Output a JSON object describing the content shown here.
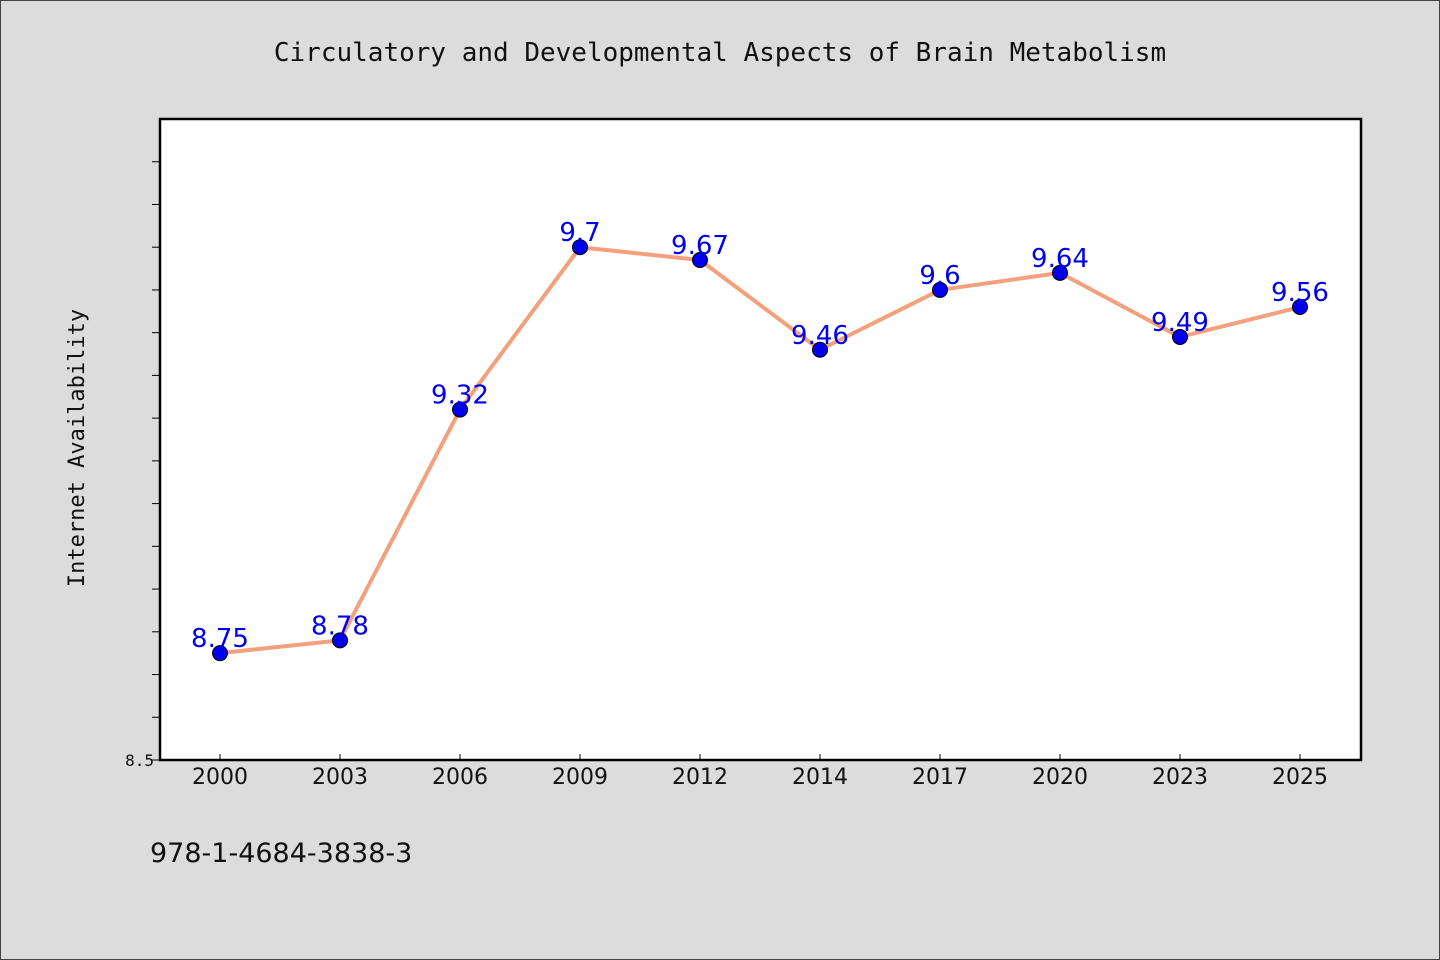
{
  "chart_data": {
    "type": "line",
    "title": "Circulatory and Developmental Aspects of Brain Metabolism",
    "xlabel": "",
    "ylabel": "Internet Availability",
    "categories": [
      "2000",
      "2003",
      "2006",
      "2009",
      "2012",
      "2014",
      "2017",
      "2020",
      "2023",
      "2025"
    ],
    "series": [
      {
        "values": [
          8.75,
          8.78,
          9.32,
          9.7,
          9.67,
          9.46,
          9.6,
          9.64,
          9.49,
          9.56
        ]
      }
    ],
    "data_labels": [
      "8.75",
      "8.78",
      "9.32",
      "9.7",
      "9.67",
      "9.46",
      "9.6",
      "9.64",
      "9.49",
      "9.56"
    ],
    "ylim": [
      8.5,
      10.0
    ],
    "ytick_labels": [
      {
        "value": 8.5,
        "label": "8.5"
      }
    ],
    "grid": false,
    "colors": {
      "line": "#f4a07c",
      "marker": "#0000ee",
      "label": "#0000ee",
      "background": "#dcdcdc",
      "plot_bg": "#ffffff"
    }
  },
  "footnote": "978-1-4684-3838-3"
}
